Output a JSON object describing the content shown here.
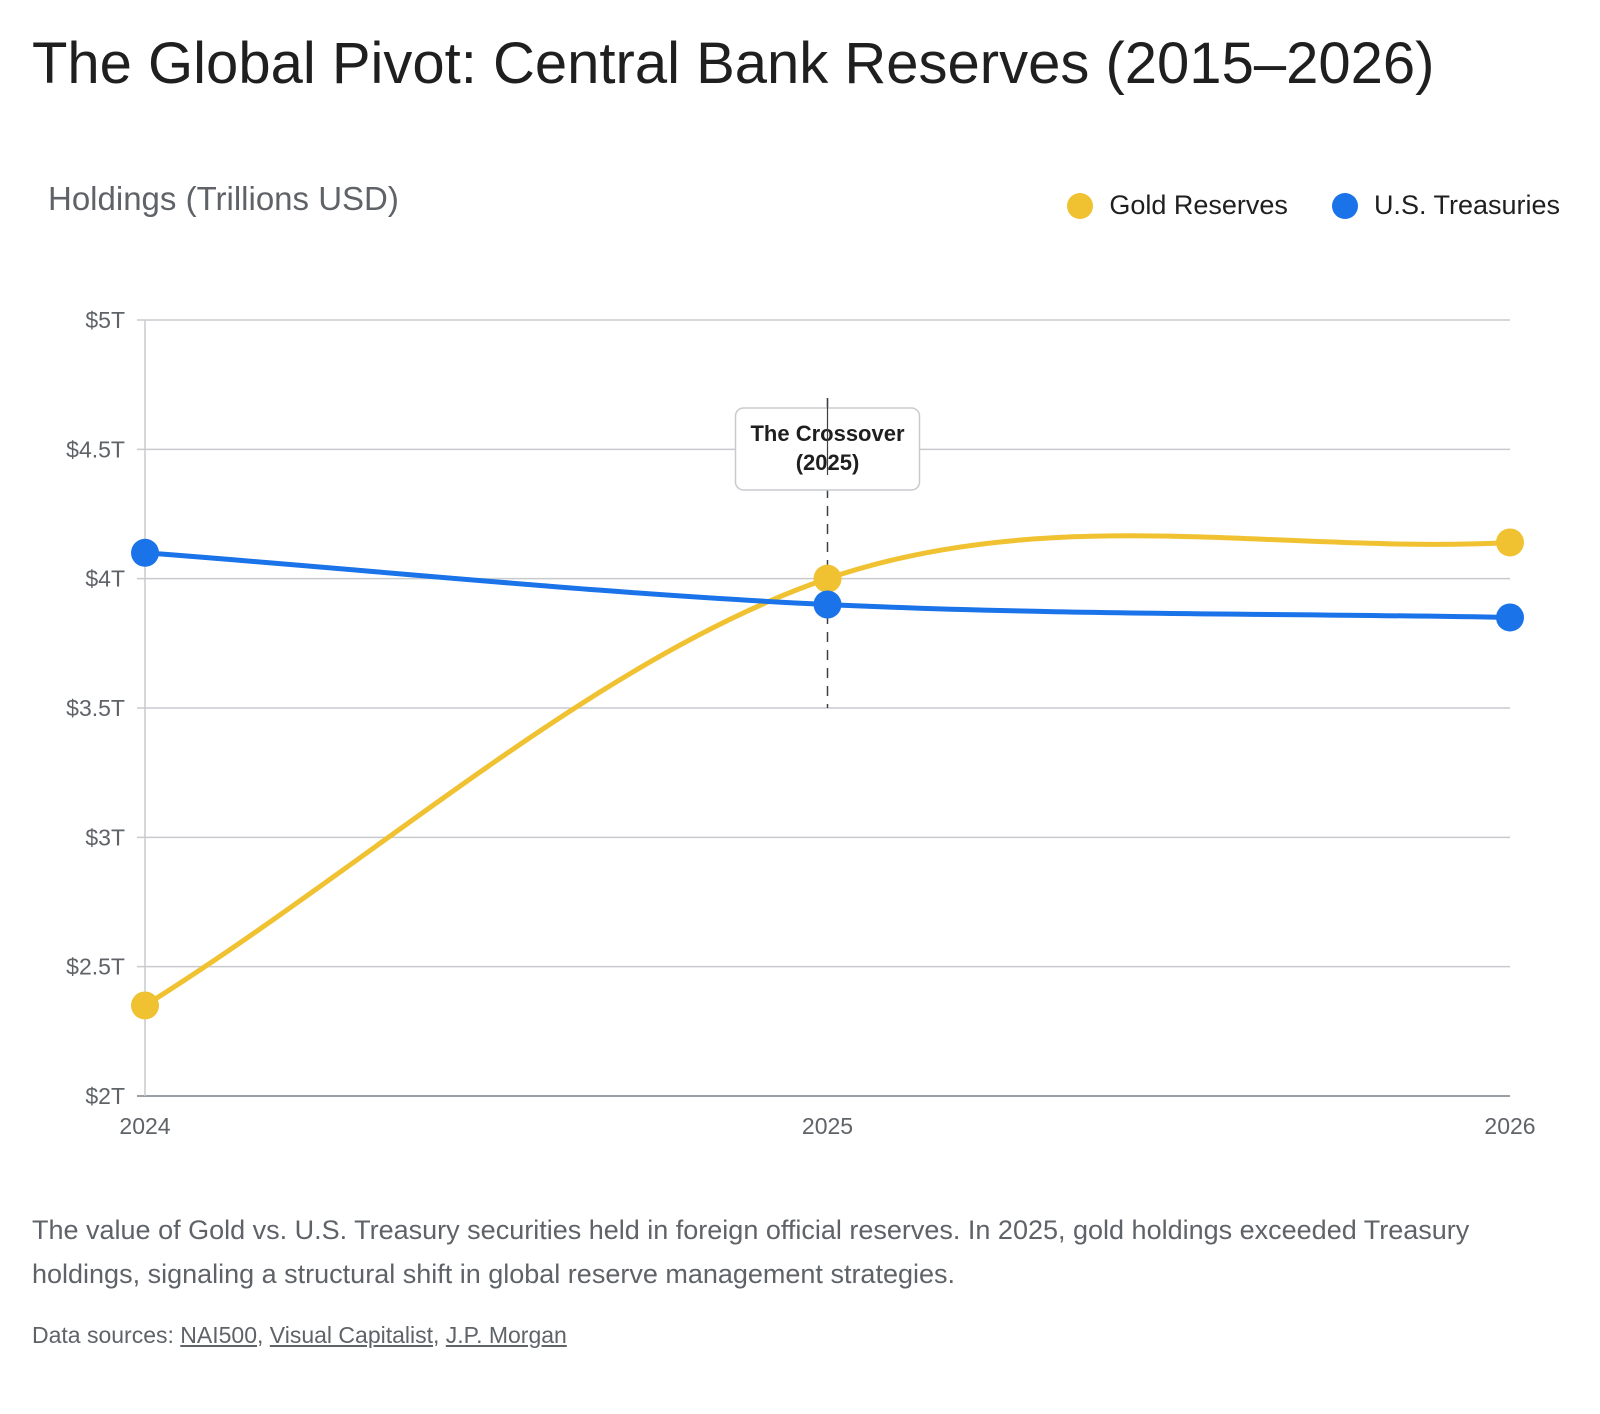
{
  "title": "The Global Pivot: Central Bank Reserves (2015–2026)",
  "description": "The value of Gold vs. U.S. Treasury securities held in foreign official reserves. In 2025, gold holdings exceeded Treasury holdings, signaling a structural shift in global reserve management strategies.",
  "sources": {
    "prefix": "Data sources: ",
    "links": [
      "NAI500",
      "Visual Capitalist",
      "J.P. Morgan"
    ]
  },
  "chart_data": {
    "type": "line",
    "ylabel": "Holdings (Trillions USD)",
    "x": [
      2024,
      2025,
      2026
    ],
    "x_tick_labels": [
      "2024",
      "2025",
      "2026"
    ],
    "ylim": [
      2,
      5
    ],
    "y_ticks": [
      2,
      2.5,
      3,
      3.5,
      4,
      4.5,
      5
    ],
    "y_tick_labels": [
      "$2T",
      "$2.5T",
      "$3T",
      "$3.5T",
      "$4T",
      "$4.5T",
      "$5T"
    ],
    "grid": true,
    "legend_position": "top-right",
    "series": [
      {
        "name": "Gold Reserves",
        "color": "#f0c232",
        "values": [
          2.35,
          4.0,
          4.14
        ]
      },
      {
        "name": "U.S. Treasuries",
        "color": "#1a73e8",
        "values": [
          4.1,
          3.9,
          3.85
        ]
      }
    ],
    "annotation": {
      "x": 2025,
      "text_lines": [
        "The Crossover",
        "(2025)"
      ]
    }
  }
}
